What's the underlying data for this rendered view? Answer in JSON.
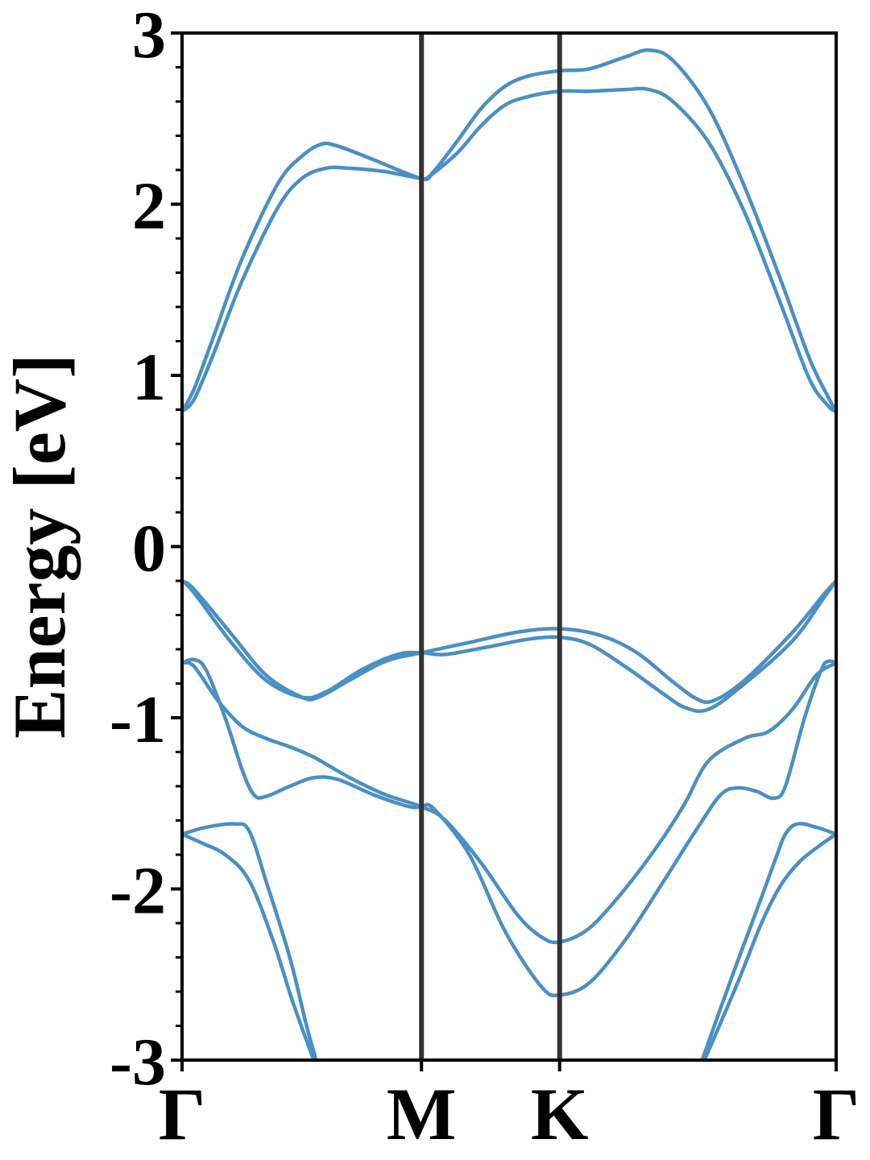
{
  "chart_data": {
    "type": "line",
    "title": "",
    "ylabel": "Energy [eV]",
    "xlabel": "",
    "ylim": [
      -3,
      3
    ],
    "y_major_ticks": [
      "-3",
      "-2",
      "-1",
      "0",
      "1",
      "2",
      "3"
    ],
    "y_minor_step": 0.2,
    "x_ticks": [
      {
        "label": "Γ",
        "x": 0.0
      },
      {
        "label": "M",
        "x": 1.0
      },
      {
        "label": "K",
        "x": 1.577
      },
      {
        "label": "Γ",
        "x": 2.732
      }
    ],
    "xlim": [
      0,
      2.732
    ],
    "grid": false,
    "legend": "none",
    "colors": {
      "bands": "#4a90c2",
      "high_symmetry_lines": "#333333",
      "axes": "#000000"
    },
    "series": [
      {
        "values": [
          [
            0.0,
            0.79
          ],
          [
            0.05,
            0.86
          ],
          [
            0.13,
            1.12
          ],
          [
            0.25,
            1.55
          ],
          [
            0.4,
            1.98
          ],
          [
            0.5,
            2.15
          ],
          [
            0.6,
            2.21
          ],
          [
            0.7,
            2.21
          ],
          [
            0.85,
            2.19
          ],
          [
            1.0,
            2.15
          ],
          [
            1.03,
            2.16
          ],
          [
            1.15,
            2.3
          ],
          [
            1.25,
            2.46
          ],
          [
            1.35,
            2.58
          ],
          [
            1.45,
            2.63
          ],
          [
            1.577,
            2.66
          ],
          [
            1.7,
            2.66
          ],
          [
            1.85,
            2.67
          ],
          [
            1.95,
            2.67
          ],
          [
            2.05,
            2.6
          ],
          [
            2.2,
            2.36
          ],
          [
            2.35,
            1.95
          ],
          [
            2.5,
            1.42
          ],
          [
            2.62,
            0.98
          ],
          [
            2.7,
            0.82
          ],
          [
            2.732,
            0.79
          ]
        ]
      },
      {
        "values": [
          [
            0.0,
            0.79
          ],
          [
            0.05,
            0.92
          ],
          [
            0.13,
            1.22
          ],
          [
            0.25,
            1.68
          ],
          [
            0.4,
            2.12
          ],
          [
            0.5,
            2.28
          ],
          [
            0.58,
            2.35
          ],
          [
            0.65,
            2.34
          ],
          [
            0.8,
            2.26
          ],
          [
            1.0,
            2.15
          ],
          [
            1.05,
            2.19
          ],
          [
            1.15,
            2.37
          ],
          [
            1.25,
            2.56
          ],
          [
            1.35,
            2.69
          ],
          [
            1.45,
            2.75
          ],
          [
            1.577,
            2.78
          ],
          [
            1.7,
            2.79
          ],
          [
            1.85,
            2.86
          ],
          [
            1.95,
            2.9
          ],
          [
            2.05,
            2.84
          ],
          [
            2.2,
            2.56
          ],
          [
            2.35,
            2.1
          ],
          [
            2.5,
            1.56
          ],
          [
            2.62,
            1.1
          ],
          [
            2.7,
            0.87
          ],
          [
            2.732,
            0.79
          ]
        ]
      },
      {
        "values": [
          [
            0.0,
            -0.2
          ],
          [
            0.05,
            -0.27
          ],
          [
            0.2,
            -0.55
          ],
          [
            0.35,
            -0.78
          ],
          [
            0.5,
            -0.88
          ],
          [
            0.6,
            -0.85
          ],
          [
            0.75,
            -0.72
          ],
          [
            0.9,
            -0.63
          ],
          [
            1.0,
            -0.62
          ],
          [
            1.1,
            -0.63
          ],
          [
            1.3,
            -0.58
          ],
          [
            1.45,
            -0.54
          ],
          [
            1.577,
            -0.53
          ],
          [
            1.7,
            -0.57
          ],
          [
            1.85,
            -0.7
          ],
          [
            2.0,
            -0.85
          ],
          [
            2.1,
            -0.94
          ],
          [
            2.2,
            -0.95
          ],
          [
            2.35,
            -0.8
          ],
          [
            2.55,
            -0.55
          ],
          [
            2.68,
            -0.3
          ],
          [
            2.732,
            -0.2
          ]
        ]
      },
      {
        "values": [
          [
            0.0,
            -0.2
          ],
          [
            0.05,
            -0.25
          ],
          [
            0.2,
            -0.5
          ],
          [
            0.35,
            -0.75
          ],
          [
            0.5,
            -0.88
          ],
          [
            0.57,
            -0.88
          ],
          [
            0.7,
            -0.78
          ],
          [
            0.85,
            -0.67
          ],
          [
            1.0,
            -0.62
          ],
          [
            1.2,
            -0.56
          ],
          [
            1.4,
            -0.5
          ],
          [
            1.577,
            -0.48
          ],
          [
            1.75,
            -0.52
          ],
          [
            1.9,
            -0.62
          ],
          [
            2.05,
            -0.79
          ],
          [
            2.15,
            -0.89
          ],
          [
            2.22,
            -0.9
          ],
          [
            2.35,
            -0.78
          ],
          [
            2.55,
            -0.5
          ],
          [
            2.68,
            -0.28
          ],
          [
            2.732,
            -0.2
          ]
        ]
      },
      {
        "values": [
          [
            0.0,
            -0.68
          ],
          [
            0.05,
            -0.7
          ],
          [
            0.15,
            -0.9
          ],
          [
            0.25,
            -1.05
          ],
          [
            0.35,
            -1.12
          ],
          [
            0.45,
            -1.17
          ],
          [
            0.55,
            -1.23
          ],
          [
            0.7,
            -1.35
          ],
          [
            0.85,
            -1.45
          ],
          [
            1.0,
            -1.52
          ],
          [
            1.1,
            -1.6
          ],
          [
            1.25,
            -1.85
          ],
          [
            1.4,
            -2.15
          ],
          [
            1.5,
            -2.28
          ],
          [
            1.577,
            -2.31
          ],
          [
            1.7,
            -2.23
          ],
          [
            1.85,
            -2.0
          ],
          [
            2.0,
            -1.72
          ],
          [
            2.1,
            -1.5
          ],
          [
            2.2,
            -1.25
          ],
          [
            2.35,
            -1.12
          ],
          [
            2.45,
            -1.08
          ],
          [
            2.55,
            -0.95
          ],
          [
            2.65,
            -0.75
          ],
          [
            2.732,
            -0.68
          ]
        ]
      },
      {
        "values": [
          [
            0.0,
            -0.68
          ],
          [
            0.05,
            -0.66
          ],
          [
            0.1,
            -0.72
          ],
          [
            0.18,
            -1.0
          ],
          [
            0.25,
            -1.3
          ],
          [
            0.3,
            -1.45
          ],
          [
            0.35,
            -1.46
          ],
          [
            0.45,
            -1.4
          ],
          [
            0.55,
            -1.35
          ],
          [
            0.65,
            -1.36
          ],
          [
            0.8,
            -1.45
          ],
          [
            0.95,
            -1.52
          ],
          [
            1.0,
            -1.52
          ],
          [
            1.05,
            -1.53
          ],
          [
            1.2,
            -1.8
          ],
          [
            1.35,
            -2.25
          ],
          [
            1.5,
            -2.57
          ],
          [
            1.577,
            -2.62
          ],
          [
            1.7,
            -2.55
          ],
          [
            1.85,
            -2.3
          ],
          [
            2.0,
            -1.98
          ],
          [
            2.15,
            -1.65
          ],
          [
            2.25,
            -1.45
          ],
          [
            2.32,
            -1.41
          ],
          [
            2.4,
            -1.43
          ],
          [
            2.47,
            -1.47
          ],
          [
            2.52,
            -1.4
          ],
          [
            2.6,
            -1.0
          ],
          [
            2.67,
            -0.72
          ],
          [
            2.7,
            -0.67
          ],
          [
            2.732,
            -0.68
          ]
        ]
      },
      {
        "values": [
          [
            0.0,
            -1.68
          ],
          [
            0.1,
            -1.64
          ],
          [
            0.22,
            -1.62
          ],
          [
            0.28,
            -1.66
          ],
          [
            0.35,
            -1.95
          ],
          [
            0.45,
            -2.4
          ],
          [
            0.52,
            -2.8
          ],
          [
            0.56,
            -3.0
          ]
        ]
      },
      {
        "values": [
          [
            0.0,
            -1.68
          ],
          [
            0.08,
            -1.73
          ],
          [
            0.18,
            -1.8
          ],
          [
            0.28,
            -1.95
          ],
          [
            0.38,
            -2.3
          ],
          [
            0.46,
            -2.65
          ],
          [
            0.55,
            -3.0
          ]
        ]
      },
      {
        "values": [
          [
            2.172,
            -3.0
          ],
          [
            2.3,
            -2.5
          ],
          [
            2.42,
            -2.05
          ],
          [
            2.48,
            -1.82
          ],
          [
            2.52,
            -1.68
          ],
          [
            2.57,
            -1.62
          ],
          [
            2.65,
            -1.64
          ],
          [
            2.732,
            -1.68
          ]
        ]
      },
      {
        "values": [
          [
            2.182,
            -3.0
          ],
          [
            2.32,
            -2.55
          ],
          [
            2.42,
            -2.2
          ],
          [
            2.5,
            -1.98
          ],
          [
            2.58,
            -1.84
          ],
          [
            2.66,
            -1.75
          ],
          [
            2.732,
            -1.68
          ]
        ]
      }
    ]
  }
}
